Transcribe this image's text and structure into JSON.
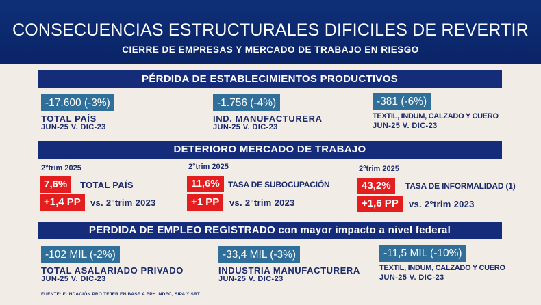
{
  "header": {
    "title": "CONSECUENCIAS ESTRUCTURALES DIFICILES DE REVERTIR",
    "subtitle": "CIERRE DE EMPRESAS Y MERCADO DE TRABAJO EN RIESGO"
  },
  "section1": {
    "title": "PÉRDIDA DE ESTABLECIMIENTOS PRODUCTIVOS",
    "items": [
      {
        "value": "-17.600 (-3%)",
        "label": "TOTAL PAÍS",
        "period": "JUN-25 V. DIC-23"
      },
      {
        "value": "-1.756 (-4%)",
        "label": "IND. MANUFACTURERA",
        "period": "JUN-25 V. DIC-23"
      },
      {
        "value": "-381 (-6%)",
        "label": "TEXTIL, INDUM, CALZADO Y CUERO",
        "period": "JUN-25 V. DIC-23"
      }
    ]
  },
  "section2": {
    "title": "DETERIORO MERCADO DE TRABAJO",
    "items": [
      {
        "period": "2°trim 2025",
        "value": "7,6%",
        "label": "TOTAL PAÍS",
        "change": "+1,4 PP",
        "compare": "vs. 2°trim 2023"
      },
      {
        "period": "2°trim 2025",
        "value": "11,6%",
        "label": "TASA DE SUBOCUPACIÓN",
        "change": "+1 PP",
        "compare": "vs. 2°trim 2023"
      },
      {
        "period": "2°trim 2025",
        "value": "43,2%",
        "label": "TASA DE INFORMALIDAD (1)",
        "change": "+1,6 PP",
        "compare": "vs. 2°trim 2023"
      }
    ]
  },
  "section3": {
    "title": "PERDIDA DE EMPLEO REGISTRADO con mayor impacto a nivel federal",
    "items": [
      {
        "value": "-102 MIL (-2%)",
        "label": "TOTAL ASALARIADO PRIVADO",
        "period": "JUN-25 V. DIC-23"
      },
      {
        "value": "-33,4 MIL (-3%)",
        "label": "INDUSTRIA MANUFACTURERA",
        "period": "JUN-25 V. DIC-23"
      },
      {
        "value": "-11,5 MIL (-10%)",
        "label": "TEXTIL, INDUM, CALZADO Y CUERO",
        "period": "JUN-25 V. DIC-23"
      }
    ]
  },
  "source": "FUENTE: FUNDACIÓN PRO TEJER EN BASE A EPH INDEC, SIPA Y SRT",
  "colors": {
    "navy": "#142c7a",
    "pill": "#2f6f9a",
    "red": "#e41e1e",
    "bg": "#f2ece6"
  }
}
